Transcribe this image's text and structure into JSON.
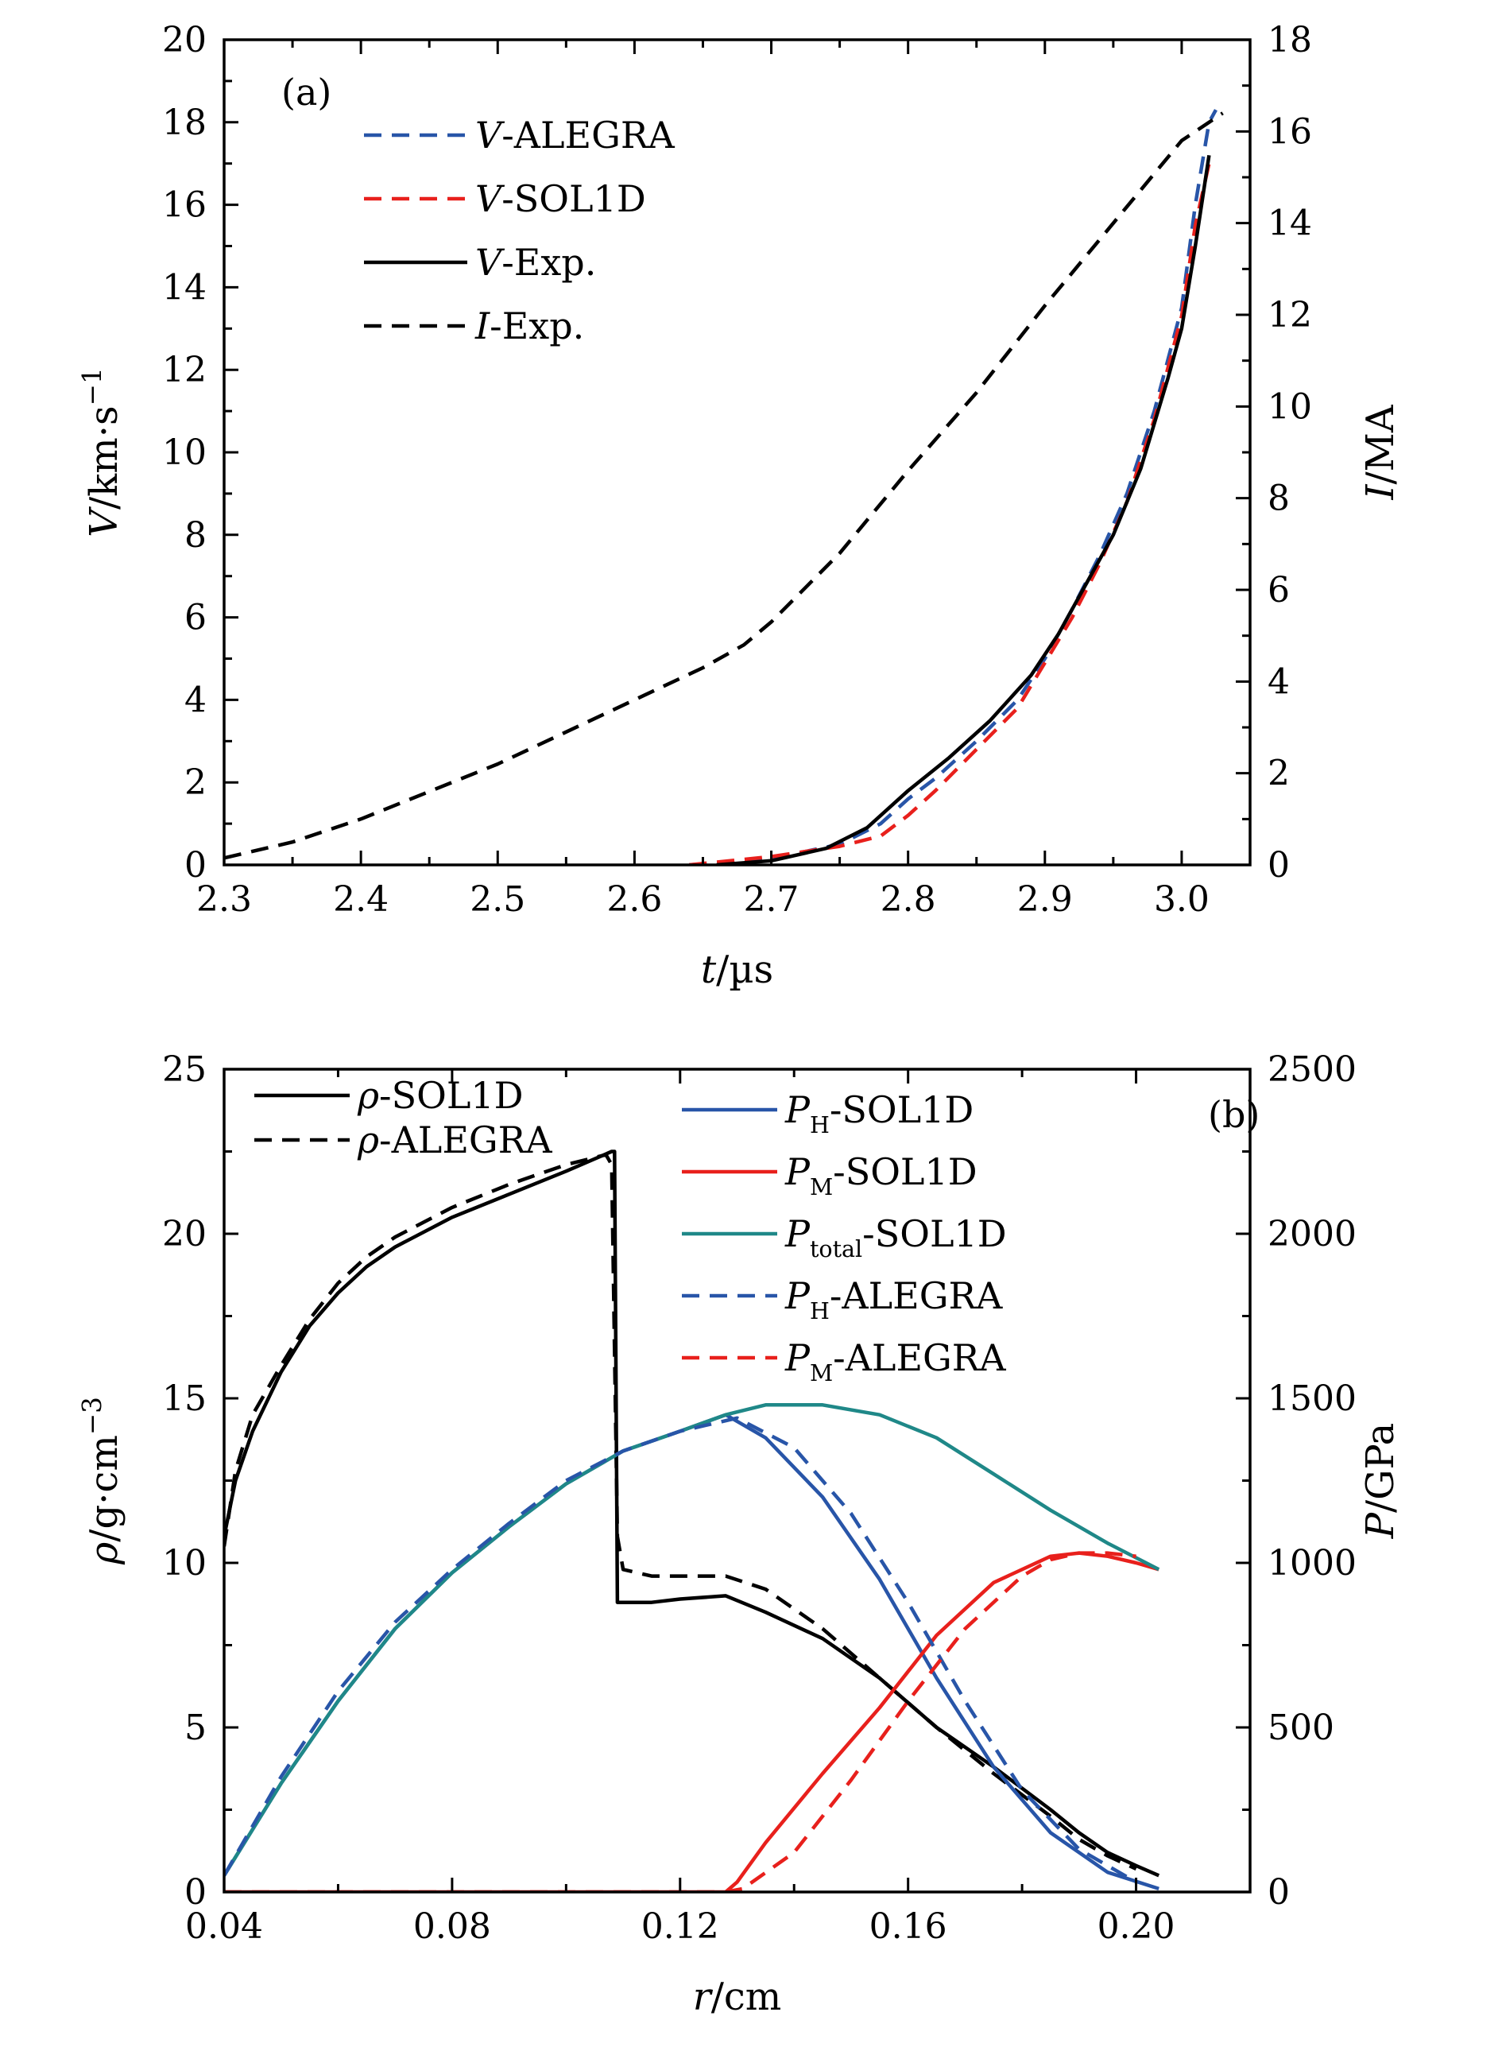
{
  "chart_data": [
    {
      "type": "line",
      "panel_label": "(a)",
      "xlabel": {
        "italic": "t",
        "rest": "/µs"
      },
      "ylabel_left": {
        "italic": "V",
        "rest": "/km·s",
        "sup": "−1"
      },
      "ylabel_right": {
        "italic": "I",
        "rest": "/MA"
      },
      "xlim": [
        2.3,
        3.05
      ],
      "ylim_left": [
        0,
        20
      ],
      "ylim_right": [
        0,
        18
      ],
      "x_ticks": [
        "2.3",
        "2.4",
        "2.5",
        "2.6",
        "2.7",
        "2.8",
        "2.9",
        "3.0"
      ],
      "y_ticks_left": [
        "0",
        "2",
        "4",
        "6",
        "8",
        "10",
        "12",
        "14",
        "16",
        "18",
        "20"
      ],
      "y_ticks_right": [
        "0",
        "2",
        "4",
        "6",
        "8",
        "10",
        "12",
        "14",
        "16",
        "18"
      ],
      "legend_placement": "top-left",
      "series": [
        {
          "name": "V-ALEGRA",
          "name_italic": "V",
          "name_rest": "-ALEGRA",
          "color": "#2855a8",
          "dash": true,
          "axis": "left",
          "x": [
            2.64,
            2.7,
            2.75,
            2.78,
            2.8,
            2.82,
            2.85,
            2.88,
            2.9,
            2.92,
            2.94,
            2.96,
            2.98,
            3.0,
            3.01,
            3.02,
            3.025
          ],
          "y": [
            0.0,
            0.15,
            0.5,
            1.0,
            1.6,
            2.1,
            3.0,
            4.0,
            5.0,
            6.2,
            7.5,
            9.0,
            11.0,
            13.5,
            16.0,
            18.0,
            18.3
          ]
        },
        {
          "name": "V-SOL1D",
          "name_italic": "V",
          "name_rest": "-SOL1D",
          "color": "#e8201c",
          "dash": true,
          "axis": "left",
          "x": [
            2.64,
            2.7,
            2.75,
            2.78,
            2.8,
            2.82,
            2.85,
            2.88,
            2.9,
            2.92,
            2.94,
            2.96,
            2.98,
            3.0,
            3.01,
            3.02
          ],
          "y": [
            0.0,
            0.2,
            0.45,
            0.7,
            1.2,
            1.8,
            2.8,
            3.8,
            4.9,
            6.0,
            7.3,
            8.8,
            10.8,
            13.3,
            15.5,
            17.0
          ]
        },
        {
          "name": "V-Exp.",
          "name_italic": "V",
          "name_rest": "-Exp.",
          "color": "#000000",
          "dash": false,
          "axis": "left",
          "x": [
            2.66,
            2.7,
            2.74,
            2.77,
            2.8,
            2.83,
            2.86,
            2.89,
            2.91,
            2.93,
            2.95,
            2.97,
            2.99,
            3.0,
            3.01,
            3.02
          ],
          "y": [
            0.0,
            0.1,
            0.4,
            0.9,
            1.8,
            2.6,
            3.5,
            4.6,
            5.6,
            6.8,
            8.0,
            9.6,
            11.8,
            13.0,
            15.0,
            17.2
          ]
        },
        {
          "name": "I-Exp.",
          "name_italic": "I",
          "name_rest": "-Exp.",
          "color": "#000000",
          "dash": true,
          "axis": "right",
          "x": [
            2.3,
            2.35,
            2.4,
            2.45,
            2.5,
            2.55,
            2.6,
            2.65,
            2.68,
            2.7,
            2.75,
            2.8,
            2.85,
            2.9,
            2.95,
            3.0,
            3.03
          ],
          "y": [
            0.15,
            0.5,
            1.0,
            1.6,
            2.2,
            2.9,
            3.6,
            4.3,
            4.8,
            5.3,
            6.8,
            8.6,
            10.3,
            12.2,
            14.0,
            15.8,
            16.4
          ]
        }
      ]
    },
    {
      "type": "line",
      "panel_label": "(b)",
      "xlabel": {
        "italic": "r",
        "rest": "/cm"
      },
      "ylabel_left": {
        "italic": "ρ",
        "rest": "/g·cm",
        "sup": "−3"
      },
      "ylabel_right": {
        "italic": "P",
        "rest": "/GPa"
      },
      "xlim": [
        0.04,
        0.22
      ],
      "ylim_left": [
        0,
        25
      ],
      "ylim_right": [
        0,
        2500
      ],
      "x_ticks": [
        "0.04",
        "0.08",
        "0.12",
        "0.16",
        "0.20"
      ],
      "y_ticks_left": [
        "0",
        "5",
        "10",
        "15",
        "20",
        "25"
      ],
      "y_ticks_right": [
        "0",
        "500",
        "1000",
        "1500",
        "2000",
        "2500"
      ],
      "legend_placement": "top",
      "series": [
        {
          "name": "ρ-SOL1D",
          "name_italic": "ρ",
          "name_rest": "-SOL1D",
          "color": "#000000",
          "dash": false,
          "axis": "left",
          "legend_group": 1,
          "x": [
            0.04,
            0.042,
            0.045,
            0.05,
            0.055,
            0.06,
            0.065,
            0.07,
            0.08,
            0.09,
            0.1,
            0.108,
            0.1085,
            0.109,
            0.11,
            0.115,
            0.12,
            0.128,
            0.135,
            0.145,
            0.155,
            0.165,
            0.175,
            0.185,
            0.19,
            0.195,
            0.2,
            0.204
          ],
          "y": [
            10.8,
            12.5,
            14.0,
            15.8,
            17.2,
            18.2,
            19.0,
            19.6,
            20.5,
            21.2,
            21.9,
            22.5,
            22.5,
            8.8,
            8.8,
            8.8,
            8.9,
            9.0,
            8.5,
            7.7,
            6.5,
            5.0,
            3.8,
            2.5,
            1.8,
            1.2,
            0.8,
            0.5
          ]
        },
        {
          "name": "ρ-ALEGRA",
          "name_italic": "ρ",
          "name_rest": "-ALEGRA",
          "color": "#000000",
          "dash": true,
          "axis": "left",
          "legend_group": 1,
          "x": [
            0.04,
            0.042,
            0.045,
            0.05,
            0.055,
            0.06,
            0.065,
            0.07,
            0.08,
            0.09,
            0.1,
            0.107,
            0.108,
            0.109,
            0.11,
            0.115,
            0.12,
            0.128,
            0.135,
            0.145,
            0.155,
            0.165,
            0.175,
            0.185,
            0.19,
            0.195,
            0.2
          ],
          "y": [
            10.5,
            12.8,
            14.5,
            16.0,
            17.4,
            18.5,
            19.3,
            19.9,
            20.8,
            21.5,
            22.1,
            22.4,
            22.1,
            10.8,
            9.8,
            9.6,
            9.6,
            9.6,
            9.2,
            8.0,
            6.5,
            5.0,
            3.6,
            2.3,
            1.6,
            1.1,
            0.7
          ]
        },
        {
          "name": "PH-SOL1D",
          "name_italic": "P",
          "name_sub": "H",
          "name_rest": "-SOL1D",
          "color": "#2855a8",
          "dash": false,
          "axis": "right",
          "legend_group": 2,
          "x": [
            0.04,
            0.05,
            0.06,
            0.07,
            0.08,
            0.09,
            0.1,
            0.11,
            0.12,
            0.128,
            0.135,
            0.145,
            0.155,
            0.165,
            0.175,
            0.185,
            0.195,
            0.204
          ],
          "y": [
            50,
            330,
            580,
            800,
            970,
            1110,
            1240,
            1340,
            1400,
            1450,
            1380,
            1200,
            950,
            650,
            380,
            180,
            60,
            10
          ]
        },
        {
          "name": "PM-SOL1D",
          "name_italic": "P",
          "name_sub": "M",
          "name_rest": "-SOL1D",
          "color": "#e8201c",
          "dash": false,
          "axis": "right",
          "legend_group": 2,
          "x": [
            0.04,
            0.1,
            0.128,
            0.13,
            0.135,
            0.145,
            0.155,
            0.165,
            0.175,
            0.185,
            0.19,
            0.195,
            0.2,
            0.204
          ],
          "y": [
            0,
            0,
            0,
            30,
            150,
            360,
            560,
            780,
            940,
            1020,
            1030,
            1020,
            1000,
            980
          ]
        },
        {
          "name": "Ptotal-SOL1D",
          "name_italic": "P",
          "name_sub": "total",
          "name_rest": "-SOL1D",
          "color": "#1f8888",
          "dash": false,
          "axis": "right",
          "legend_group": 2,
          "x": [
            0.04,
            0.05,
            0.06,
            0.07,
            0.08,
            0.09,
            0.1,
            0.11,
            0.12,
            0.128,
            0.135,
            0.145,
            0.155,
            0.165,
            0.175,
            0.185,
            0.195,
            0.204
          ],
          "y": [
            50,
            330,
            580,
            800,
            970,
            1110,
            1240,
            1340,
            1400,
            1450,
            1480,
            1480,
            1450,
            1380,
            1270,
            1160,
            1060,
            980
          ]
        },
        {
          "name": "PH-ALEGRA",
          "name_italic": "P",
          "name_sub": "H",
          "name_rest": "-ALEGRA",
          "color": "#2855a8",
          "dash": true,
          "axis": "right",
          "legend_group": 2,
          "x": [
            0.04,
            0.05,
            0.06,
            0.07,
            0.08,
            0.09,
            0.1,
            0.11,
            0.12,
            0.13,
            0.14,
            0.15,
            0.16,
            0.17,
            0.18,
            0.19,
            0.2
          ],
          "y": [
            50,
            350,
            610,
            820,
            980,
            1120,
            1250,
            1340,
            1400,
            1440,
            1350,
            1150,
            880,
            580,
            310,
            130,
            30
          ]
        },
        {
          "name": "PM-ALEGRA",
          "name_italic": "P",
          "name_sub": "M",
          "name_rest": "-ALEGRA",
          "color": "#e8201c",
          "dash": true,
          "axis": "right",
          "legend_group": 2,
          "x": [
            0.04,
            0.1,
            0.128,
            0.131,
            0.14,
            0.15,
            0.16,
            0.17,
            0.18,
            0.185,
            0.19,
            0.195,
            0.2
          ],
          "y": [
            0,
            0,
            0,
            10,
            120,
            340,
            580,
            800,
            960,
            1010,
            1030,
            1030,
            1020
          ]
        }
      ]
    }
  ]
}
